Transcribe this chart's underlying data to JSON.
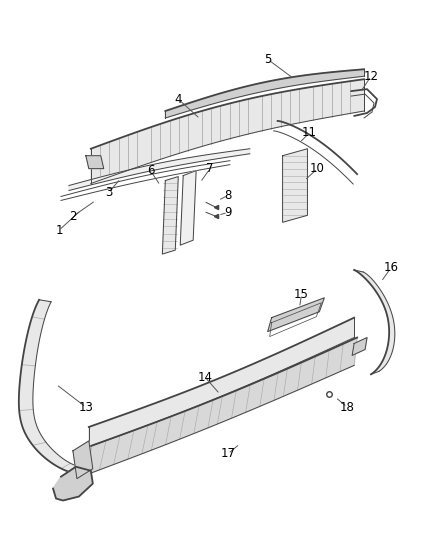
{
  "background_color": "#ffffff",
  "fig_width": 4.38,
  "fig_height": 5.33,
  "dpi": 100,
  "line_color": "#444444",
  "fill_light": "#e8e8e8",
  "fill_mid": "#d0d0d0",
  "fill_dark": "#b8b8b8",
  "label_color": "#000000",
  "label_fontsize": 8.5,
  "leader_color": "#555555"
}
